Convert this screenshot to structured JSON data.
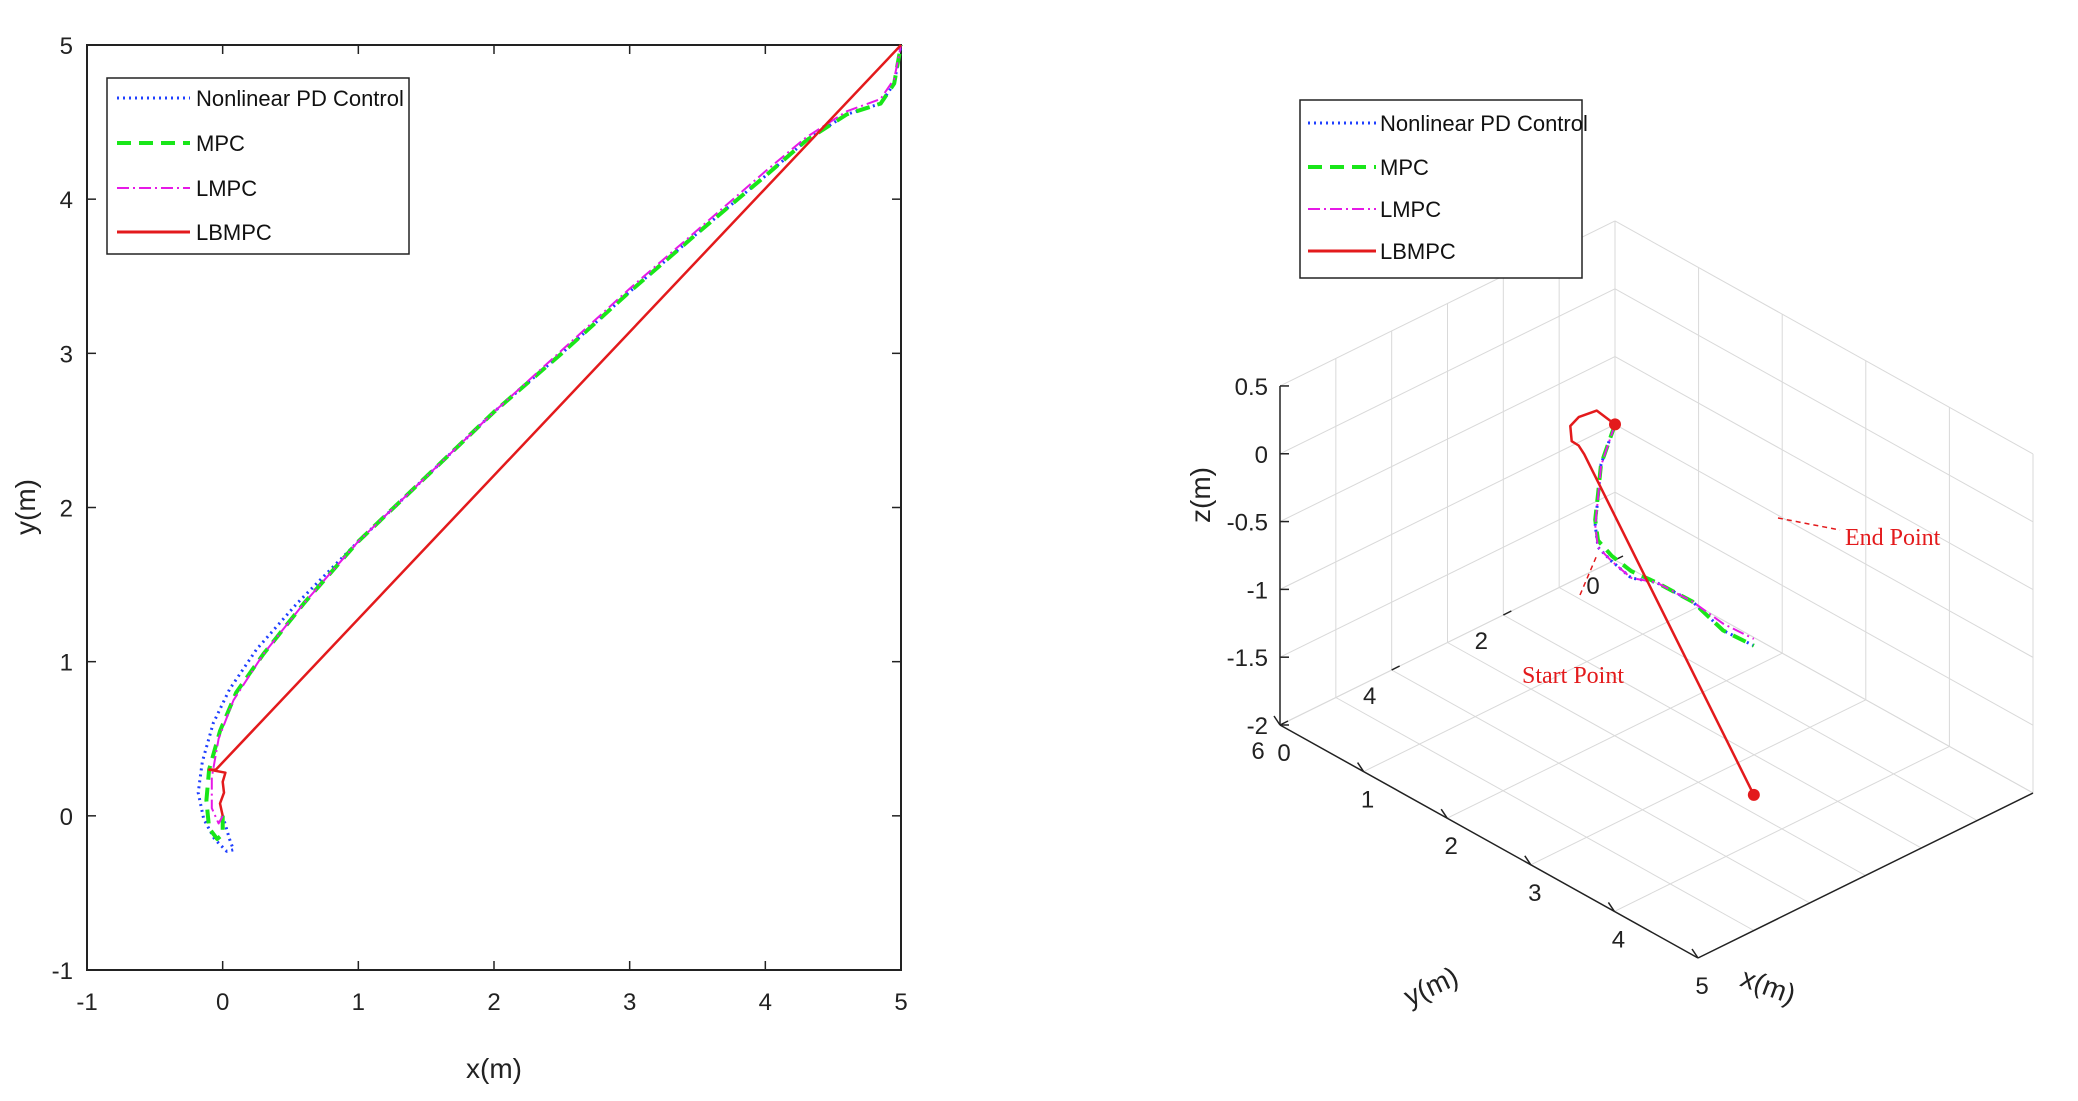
{
  "colors": {
    "nonlinear_pd": "#1f3fff",
    "mpc": "#19e619",
    "lmpc": "#e619e6",
    "lbmpc": "#e31a1c",
    "axis": "#222222",
    "grid": "#d9d9d9"
  },
  "chart_data": [
    {
      "type": "line",
      "title": "",
      "xlabel": "x(m)",
      "ylabel": "y(m)",
      "xlim": [
        -1,
        5
      ],
      "ylim": [
        -1,
        5
      ],
      "xticks": [
        "-1",
        "0",
        "1",
        "2",
        "3",
        "4",
        "5"
      ],
      "yticks": [
        "-1",
        "0",
        "1",
        "2",
        "3",
        "4",
        "5"
      ],
      "grid": false,
      "legend_position": "top-left",
      "series": [
        {
          "name": "Nonlinear PD Control",
          "style": "dotted",
          "color_key": "nonlinear_pd",
          "x": [
            0.0,
            0.05,
            0.08,
            0.03,
            -0.06,
            -0.14,
            -0.18,
            -0.15,
            -0.07,
            0.05,
            0.25,
            0.55,
            1.0,
            1.5,
            2.0,
            2.5,
            3.0,
            3.5,
            4.0,
            4.3,
            4.6,
            4.85,
            4.95,
            5.0
          ],
          "y": [
            0.0,
            -0.15,
            -0.22,
            -0.23,
            -0.15,
            -0.02,
            0.15,
            0.35,
            0.6,
            0.82,
            1.08,
            1.38,
            1.78,
            2.2,
            2.62,
            3.0,
            3.4,
            3.78,
            4.15,
            4.38,
            4.55,
            4.62,
            4.75,
            5.0
          ]
        },
        {
          "name": "MPC",
          "style": "dashed",
          "color_key": "mpc",
          "x": [
            0.0,
            0.0,
            -0.04,
            -0.1,
            -0.12,
            -0.1,
            -0.02,
            0.1,
            0.3,
            0.6,
            1.0,
            1.5,
            2.0,
            2.5,
            3.0,
            3.5,
            4.0,
            4.3,
            4.6,
            4.85,
            4.95,
            5.0
          ],
          "y": [
            0.0,
            -0.12,
            -0.15,
            -0.08,
            0.1,
            0.3,
            0.55,
            0.8,
            1.05,
            1.38,
            1.78,
            2.2,
            2.62,
            3.0,
            3.4,
            3.78,
            4.15,
            4.38,
            4.55,
            4.62,
            4.75,
            5.0
          ]
        },
        {
          "name": "LMPC",
          "style": "dashdot",
          "color_key": "lmpc",
          "x": [
            0.0,
            -0.03,
            -0.08,
            -0.08,
            -0.03,
            0.08,
            0.3,
            0.6,
            1.0,
            1.5,
            2.0,
            2.5,
            3.0,
            3.5,
            4.0,
            4.3,
            4.6,
            4.85,
            4.95,
            5.0
          ],
          "y": [
            0.0,
            -0.05,
            0.05,
            0.25,
            0.5,
            0.75,
            1.05,
            1.38,
            1.78,
            2.2,
            2.62,
            3.02,
            3.42,
            3.8,
            4.18,
            4.4,
            4.57,
            4.65,
            4.78,
            5.0
          ]
        },
        {
          "name": "LBMPC",
          "style": "solid",
          "color_key": "lbmpc",
          "x": [
            0.0,
            -0.02,
            0.01,
            0.0,
            0.02,
            -0.1,
            -0.05,
            5.0
          ],
          "y": [
            0.0,
            0.08,
            0.15,
            0.22,
            0.28,
            0.3,
            0.3,
            5.0
          ]
        }
      ]
    },
    {
      "type": "line",
      "title": "",
      "xlabel": "x(m)",
      "ylabel": "y(m)",
      "zlabel": "z(m)",
      "xlim": [
        0,
        5
      ],
      "ylim": [
        0,
        6
      ],
      "zlim": [
        -2,
        0.5
      ],
      "xticks": [
        "0",
        "1",
        "2",
        "3",
        "4",
        "5"
      ],
      "yticks": [
        "0",
        "2",
        "4",
        "6"
      ],
      "zticks": [
        "-2",
        "-1.5",
        "-1",
        "-0.5",
        "0",
        "0.5"
      ],
      "grid": true,
      "legend_position": "top-left",
      "annotations": [
        {
          "text": "Start Point"
        },
        {
          "text": "End Point"
        }
      ],
      "series": [
        {
          "name": "Nonlinear PD Control",
          "style": "dotted",
          "color_key": "nonlinear_pd",
          "x": [
            0.0,
            0.5,
            1.0,
            1.5,
            2.0,
            2.5,
            3.0,
            3.5,
            4.0,
            4.5,
            5.0
          ],
          "y": [
            0.0,
            1.0,
            1.8,
            2.6,
            3.3,
            3.8,
            4.2,
            4.5,
            4.6,
            4.8,
            5.0
          ],
          "z": [
            -1.0,
            -0.92,
            -0.82,
            -0.7,
            -0.55,
            -0.38,
            -0.25,
            -0.05,
            0.0,
            0.0,
            0.1
          ]
        },
        {
          "name": "MPC",
          "style": "dashed",
          "color_key": "mpc",
          "x": [
            0.0,
            0.5,
            1.0,
            1.5,
            2.0,
            2.5,
            3.0,
            3.5,
            4.0,
            4.5,
            5.0
          ],
          "y": [
            0.0,
            1.0,
            1.8,
            2.6,
            3.3,
            3.8,
            4.2,
            4.5,
            4.6,
            4.8,
            5.0
          ],
          "z": [
            -1.0,
            -0.92,
            -0.8,
            -0.66,
            -0.5,
            -0.34,
            -0.2,
            -0.05,
            0.0,
            0.0,
            0.1
          ]
        },
        {
          "name": "LMPC",
          "style": "dashdot",
          "color_key": "lmpc",
          "x": [
            0.0,
            0.5,
            1.0,
            1.5,
            2.0,
            2.5,
            3.0,
            3.5,
            4.0,
            4.5,
            5.0
          ],
          "y": [
            0.0,
            1.0,
            1.8,
            2.6,
            3.3,
            3.8,
            4.2,
            4.5,
            4.6,
            4.8,
            5.0
          ],
          "z": [
            -1.0,
            -0.93,
            -0.83,
            -0.7,
            -0.55,
            -0.38,
            -0.25,
            -0.05,
            0.0,
            0.05,
            0.15
          ]
        },
        {
          "name": "LBMPC",
          "style": "solid",
          "color_key": "lbmpc",
          "x": [
            0.0,
            0.05,
            0.1,
            0.2,
            0.35,
            0.5,
            0.6,
            5.0
          ],
          "y": [
            0.0,
            0.4,
            0.8,
            1.1,
            1.3,
            1.4,
            1.45,
            5.0
          ],
          "z": [
            -1.0,
            -0.8,
            -0.75,
            -0.72,
            -0.74,
            -0.7,
            -0.72,
            -1.0
          ]
        }
      ]
    }
  ]
}
